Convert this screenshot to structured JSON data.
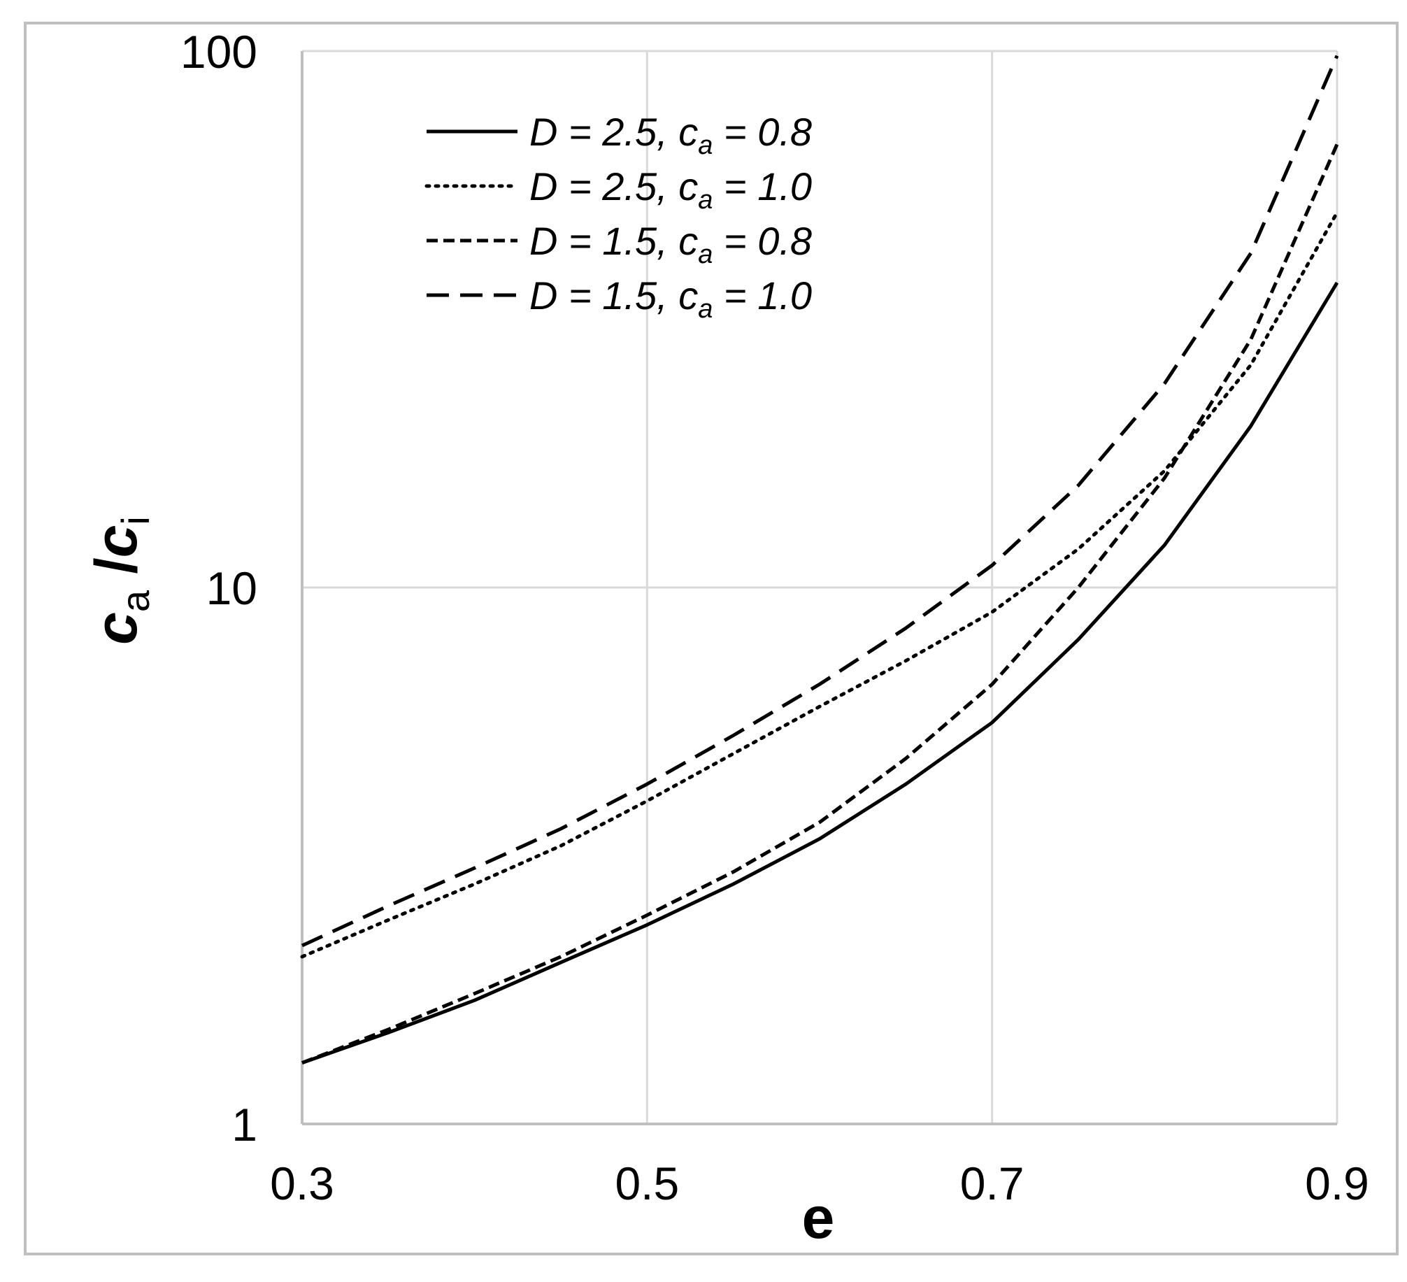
{
  "chart_data": {
    "type": "line",
    "title": "",
    "xlabel": "e",
    "ylabel": {
      "main1": "c",
      "sub1": "a",
      "sep": " /",
      "main2": "c",
      "sub2": "i"
    },
    "x_ticks": [
      "0.3",
      "0.5",
      "0.7",
      "0.9"
    ],
    "y_ticks": [
      "1",
      "10",
      "100"
    ],
    "xlim": [
      0.3,
      0.9
    ],
    "ylim": [
      1,
      100
    ],
    "y_scale": "log",
    "grid": true,
    "legend_position": "top-left",
    "series": [
      {
        "name": "D = 2.5, c_a = 0.8",
        "legend": {
          "pre": "D = 2.5, c",
          "sub": "a",
          "post": " = 0.8"
        },
        "line_style": "solid",
        "x": [
          0.3,
          0.35,
          0.4,
          0.45,
          0.5,
          0.55,
          0.6,
          0.65,
          0.7,
          0.75,
          0.8,
          0.85,
          0.9
        ],
        "y": [
          1.3,
          1.48,
          1.7,
          2.0,
          2.35,
          2.8,
          3.4,
          4.3,
          5.6,
          8.0,
          12.0,
          20.0,
          37.0
        ]
      },
      {
        "name": "D = 2.5, c_a = 1.0",
        "legend": {
          "pre": "D = 2.5, c",
          "sub": "a",
          "post": " = 1.0"
        },
        "line_style": "dotted",
        "x": [
          0.3,
          0.35,
          0.4,
          0.45,
          0.5,
          0.55,
          0.6,
          0.65,
          0.7,
          0.75,
          0.8,
          0.85,
          0.9
        ],
        "y": [
          2.05,
          2.4,
          2.8,
          3.3,
          4.0,
          4.9,
          6.0,
          7.3,
          9.0,
          11.8,
          16.5,
          26.0,
          50.0
        ]
      },
      {
        "name": "D = 1.5, c_a = 0.8",
        "legend": {
          "pre": "D = 1.5, c",
          "sub": "a",
          "post": " = 0.8"
        },
        "line_style": "short-dash",
        "x": [
          0.3,
          0.35,
          0.4,
          0.45,
          0.5,
          0.55,
          0.6,
          0.65,
          0.7,
          0.75,
          0.8,
          0.85,
          0.9
        ],
        "y": [
          1.3,
          1.5,
          1.75,
          2.05,
          2.45,
          2.95,
          3.65,
          4.8,
          6.6,
          10.0,
          16.0,
          29.0,
          67.0
        ]
      },
      {
        "name": "D = 1.5, c_a = 1.0",
        "legend": {
          "pre": "D = 1.5, c",
          "sub": "a",
          "post": " = 1.0"
        },
        "line_style": "long-dash",
        "x": [
          0.3,
          0.35,
          0.4,
          0.45,
          0.5,
          0.55,
          0.6,
          0.65,
          0.7,
          0.75,
          0.8,
          0.85,
          0.9
        ],
        "y": [
          2.15,
          2.55,
          3.0,
          3.55,
          4.3,
          5.3,
          6.6,
          8.4,
          11.0,
          15.5,
          24.0,
          42.0,
          98.0
        ]
      }
    ]
  }
}
